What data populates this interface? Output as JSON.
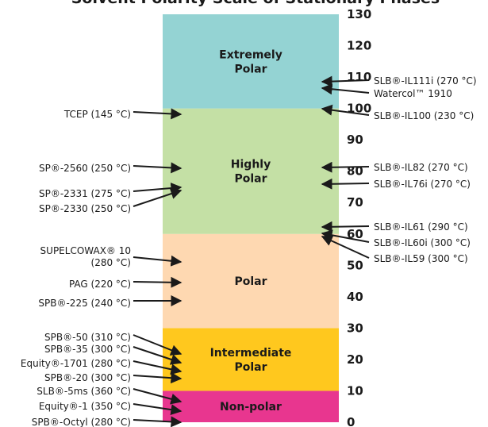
{
  "title_fragment": "Solvent Polarity Scale of Stationary Phases",
  "chart_data": {
    "type": "polarity-scale",
    "ylim": [
      0,
      130
    ],
    "ticks": [
      0,
      10,
      20,
      30,
      40,
      50,
      60,
      70,
      80,
      90,
      100,
      110,
      120,
      130
    ],
    "zones": [
      {
        "name": "Non-polar",
        "lines": [
          "Non-polar"
        ],
        "from": 0,
        "to": 10,
        "color": "#e8368f"
      },
      {
        "name": "Intermediate Polar",
        "lines": [
          "Intermediate",
          "Polar"
        ],
        "from": 10,
        "to": 30,
        "color": "#ffc81e"
      },
      {
        "name": "Polar",
        "lines": [
          "Polar"
        ],
        "from": 30,
        "to": 60,
        "color": "#fed8b1"
      },
      {
        "name": "Highly Polar",
        "lines": [
          "Highly",
          "Polar"
        ],
        "from": 60,
        "to": 100,
        "color": "#c4e0a5"
      },
      {
        "name": "Extremely Polar",
        "lines": [
          "Extremely",
          "Polar"
        ],
        "from": 100,
        "to": 130,
        "color": "#94d3d3"
      }
    ],
    "left_phases": [
      {
        "lines": [
          "TCEP (145 °C)"
        ],
        "value": 100
      },
      {
        "lines": [
          "SP®-2560 (250 °C)"
        ],
        "value": 81
      },
      {
        "lines": [
          "SP®-2331 (275 °C)"
        ],
        "value": 76
      },
      {
        "lines": [
          "SP®-2330 (250 °C)"
        ],
        "value": 74
      },
      {
        "lines": [
          "SUPELCOWAX® 10",
          "(280 °C)"
        ],
        "value": 52
      },
      {
        "lines": [
          "PAG (220 °C)"
        ],
        "value": 44
      },
      {
        "lines": [
          "SPB®-225 (240 °C)"
        ],
        "value": 38
      },
      {
        "lines": [
          "SPB®-50 (310 °C)"
        ],
        "value": 19
      },
      {
        "lines": [
          "SPB®-35 (300 °C)"
        ],
        "value": 16
      },
      {
        "lines": [
          "Equity®-1701 (280 °C)"
        ],
        "value": 12
      },
      {
        "lines": [
          "SPB®-20 (300 °C)"
        ],
        "value": 10
      },
      {
        "lines": [
          "SLB®-5ms (360 °C)"
        ],
        "value": 6
      },
      {
        "lines": [
          "Equity®-1 (350 °C)"
        ],
        "value": 3
      },
      {
        "lines": [
          "SPB®-Octyl (280 °C)"
        ],
        "value": 0
      }
    ],
    "right_phases": [
      {
        "lines": [
          "SLB®-IL111i (270 °C)"
        ],
        "value": 110
      },
      {
        "lines": [
          "Watercol™ 1910"
        ],
        "value": 108
      },
      {
        "lines": [
          "SLB®-IL100 (230 °C)"
        ],
        "value": 100
      },
      {
        "lines": [
          "SLB®-IL82 (270 °C)"
        ],
        "value": 81
      },
      {
        "lines": [
          "SLB®-IL76i (270 °C)"
        ],
        "value": 76
      },
      {
        "lines": [
          "SLB®-IL61 (290 °C)"
        ],
        "value": 61
      },
      {
        "lines": [
          "SLB®-IL60i (300 °C)"
        ],
        "value": 60
      },
      {
        "lines": [
          "SLB®-IL59 (300 °C)"
        ],
        "value": 59
      }
    ]
  }
}
